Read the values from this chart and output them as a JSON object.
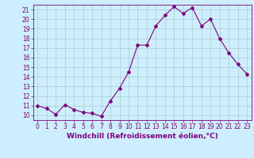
{
  "x": [
    0,
    1,
    2,
    3,
    4,
    5,
    6,
    7,
    8,
    9,
    10,
    11,
    12,
    13,
    14,
    15,
    16,
    17,
    18,
    19,
    20,
    21,
    22,
    23
  ],
  "y": [
    11.0,
    10.7,
    10.1,
    11.1,
    10.6,
    10.3,
    10.2,
    9.9,
    11.5,
    12.8,
    14.5,
    17.3,
    17.3,
    19.3,
    20.4,
    21.3,
    20.6,
    21.2,
    19.3,
    20.0,
    18.0,
    16.5,
    15.3,
    14.3
  ],
  "line_color": "#800080",
  "marker": "D",
  "marker_size": 2,
  "bg_color": "#cceeff",
  "grid_color": "#aacccc",
  "xlabel": "Windchill (Refroidissement éolien,°C)",
  "xlim": [
    -0.5,
    23.5
  ],
  "ylim": [
    9.5,
    21.5
  ],
  "yticks": [
    10,
    11,
    12,
    13,
    14,
    15,
    16,
    17,
    18,
    19,
    20,
    21
  ],
  "xticks": [
    0,
    1,
    2,
    3,
    4,
    5,
    6,
    7,
    8,
    9,
    10,
    11,
    12,
    13,
    14,
    15,
    16,
    17,
    18,
    19,
    20,
    21,
    22,
    23
  ],
  "label_color": "#800080",
  "tick_color": "#800080",
  "tick_font_size": 5.5,
  "xlabel_font_size": 6.5,
  "lw": 0.8
}
